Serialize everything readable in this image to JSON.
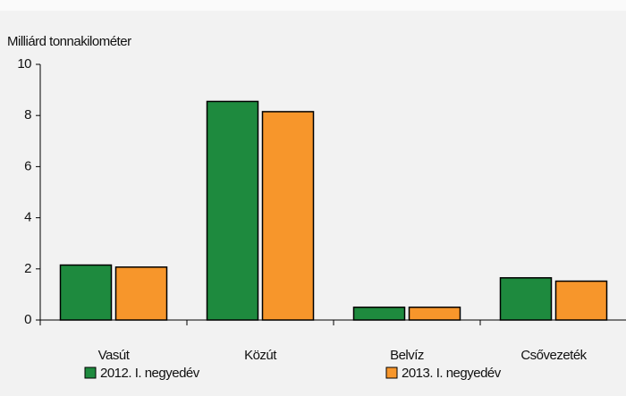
{
  "chart_data": {
    "type": "bar",
    "ylabel": "Milliárd tonnakilométer",
    "categories": [
      "Vasút",
      "Közút",
      "Belvíz",
      "Csővezeték"
    ],
    "series": [
      {
        "name": "2012. I. negyedév",
        "color": "#1e8a3e",
        "values": [
          2.15,
          8.55,
          0.5,
          1.65
        ]
      },
      {
        "name": "2013. I. negyedév",
        "color": "#f7962b",
        "values": [
          2.07,
          8.15,
          0.5,
          1.52
        ]
      }
    ],
    "ylim": [
      0,
      10
    ],
    "yticks": [
      0,
      2,
      4,
      6,
      8,
      10
    ],
    "grid": false
  }
}
